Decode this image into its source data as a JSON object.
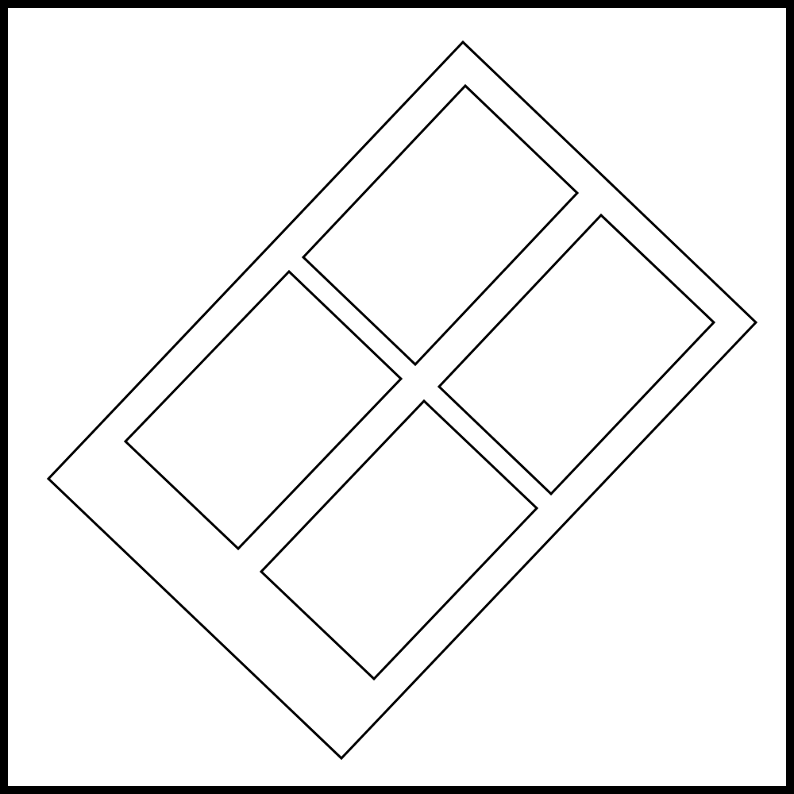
{
  "diagram": {
    "description_visible_text": "",
    "colors": {
      "stroke": "#000000",
      "background": "#ffffff",
      "fill": "#ffffff"
    },
    "shapes": {
      "outer_frame": "square-frame",
      "panel": "rotated-rectangle-panel",
      "cells": [
        "cell-top",
        "cell-right",
        "cell-left",
        "cell-bottom"
      ]
    }
  }
}
